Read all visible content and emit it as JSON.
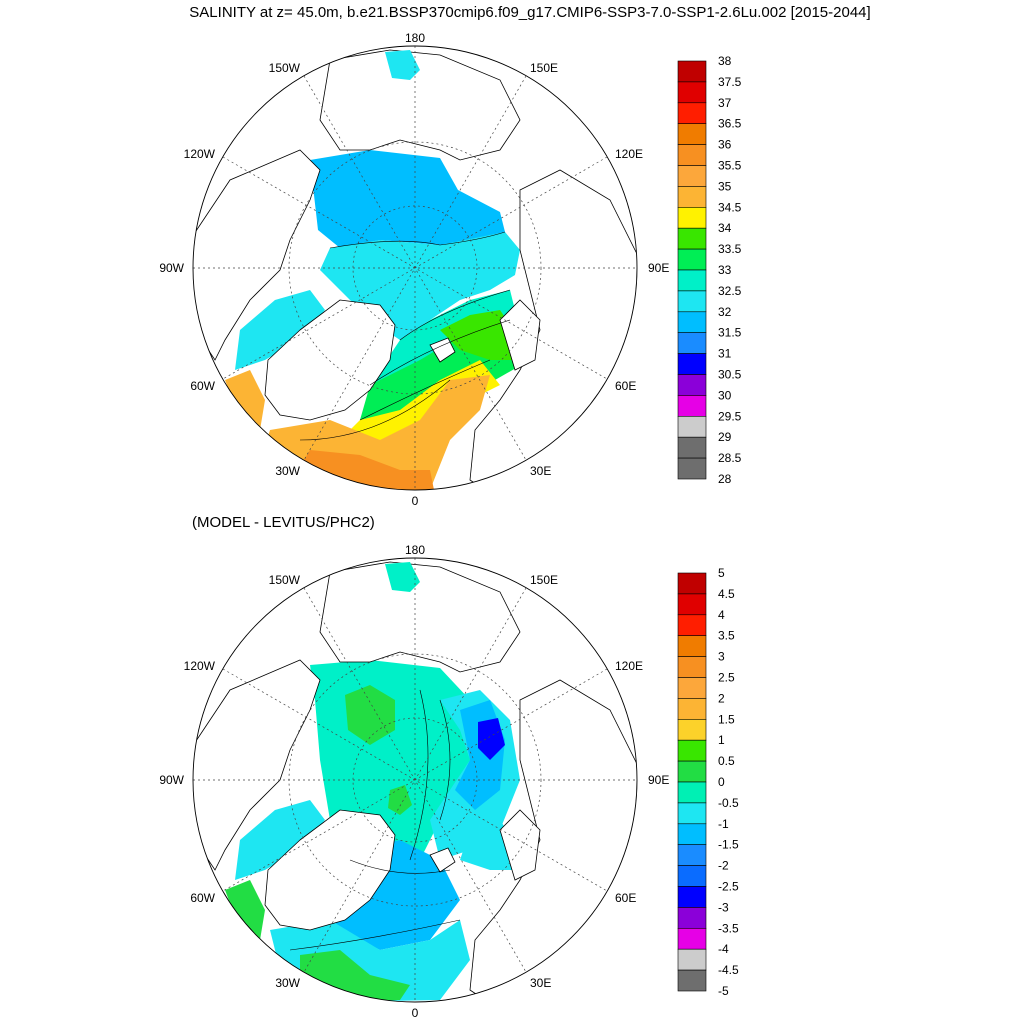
{
  "title": "SALINITY at z=  45.0m, b.e21.BSSP370cmip6.f09_g17.CMIP6-SSP3-7.0-SSP1-2.6Lu.002 [2015-2044]",
  "bottom_title": "(MODEL - LEVITUS/PHC2)",
  "map_labels": {
    "top": "180",
    "bottom": "0",
    "left": "90W",
    "right": "90E",
    "w150": "150W",
    "e150": "150E",
    "w120": "120W",
    "e120": "120E",
    "w60": "60W",
    "e60": "60E",
    "w30": "30W",
    "e30": "30E"
  },
  "colorbar_top": {
    "labels": [
      "38",
      "37.5",
      "37",
      "36.5",
      "36",
      "35.5",
      "35",
      "34.5",
      "34",
      "33.5",
      "33",
      "32.5",
      "32",
      "31.5",
      "31",
      "30.5",
      "30",
      "29.5",
      "29",
      "28.5",
      "28"
    ],
    "colors": [
      "#c00000",
      "#e00000",
      "#ff1e00",
      "#f07c00",
      "#f79021",
      "#fca73b",
      "#fcb434",
      "#fff200",
      "#39e600",
      "#00ee55",
      "#00f0c8",
      "#1ee6f2",
      "#00beff",
      "#1a8cff",
      "#0000ff",
      "#8b00d9",
      "#e600e6",
      "#cccccc",
      "#6e6e6e",
      "#6e6e6e"
    ]
  },
  "colorbar_bottom": {
    "labels": [
      "5",
      "4.5",
      "4",
      "3.5",
      "3",
      "2.5",
      "2",
      "1.5",
      "1",
      "0.5",
      "0",
      "-0.5",
      "-1",
      "-1.5",
      "-2",
      "-2.5",
      "-3",
      "-3.5",
      "-4",
      "-4.5",
      "-5"
    ],
    "colors": [
      "#c00000",
      "#e00000",
      "#ff1e00",
      "#f07c00",
      "#f79021",
      "#fca73b",
      "#fcb434",
      "#fcd22a",
      "#39e600",
      "#22dd44",
      "#00f0b4",
      "#1ee6f2",
      "#00beff",
      "#1a8cff",
      "#0a6cff",
      "#0000ff",
      "#8b00d9",
      "#e600e6",
      "#cccccc",
      "#6e6e6e"
    ]
  },
  "palette": {
    "ocean_31": "#00beff",
    "ocean_32": "#1ee6f2",
    "ocean_33": "#00ee55",
    "ocean_34": "#fff200",
    "ocean_35": "#fcb434",
    "ocean_355": "#f79021",
    "land": "#ffffff",
    "diff_green": "#22dd44",
    "diff_cyan": "#00f0c8",
    "diff_lightblue": "#1ee6f2",
    "diff_blue": "#00beff",
    "diff_darkblue": "#0000ff"
  }
}
